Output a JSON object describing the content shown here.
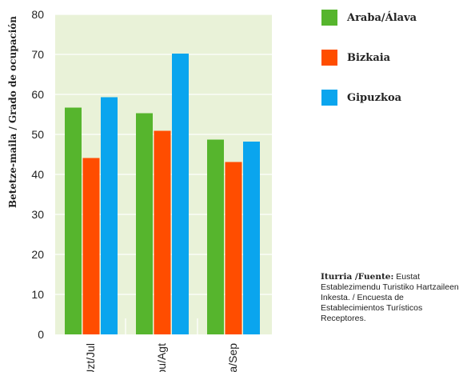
{
  "chart_data": {
    "type": "bar",
    "categories": [
      "Uzt/Jul",
      "Abu/Agt",
      "Ira/Sep"
    ],
    "series": [
      {
        "name": "Araba/Álava",
        "color": "#56b52d",
        "values": [
          56.7,
          55.3,
          48.7
        ]
      },
      {
        "name": "Bizkaia",
        "color": "#ff4d00",
        "values": [
          44.1,
          50.9,
          43.1
        ]
      },
      {
        "name": "Gipuzkoa",
        "color": "#0aa5ee",
        "values": [
          59.3,
          70.2,
          48.2
        ]
      }
    ],
    "ylabel": "Betetze-maila / Grado de ocupación",
    "ylim": [
      0,
      80
    ],
    "yticks": [
      0,
      10,
      20,
      30,
      40,
      50,
      60,
      70,
      80
    ],
    "grid": true,
    "legend_position": "top-right",
    "plot_background": "#e9f2d8"
  },
  "source": {
    "label": "Iturria /Fuente:",
    "text": " Eustat Establezimendu Turistiko Hartzaileen Inkesta. / Encuesta de Establecimientos Turísticos Receptores."
  }
}
